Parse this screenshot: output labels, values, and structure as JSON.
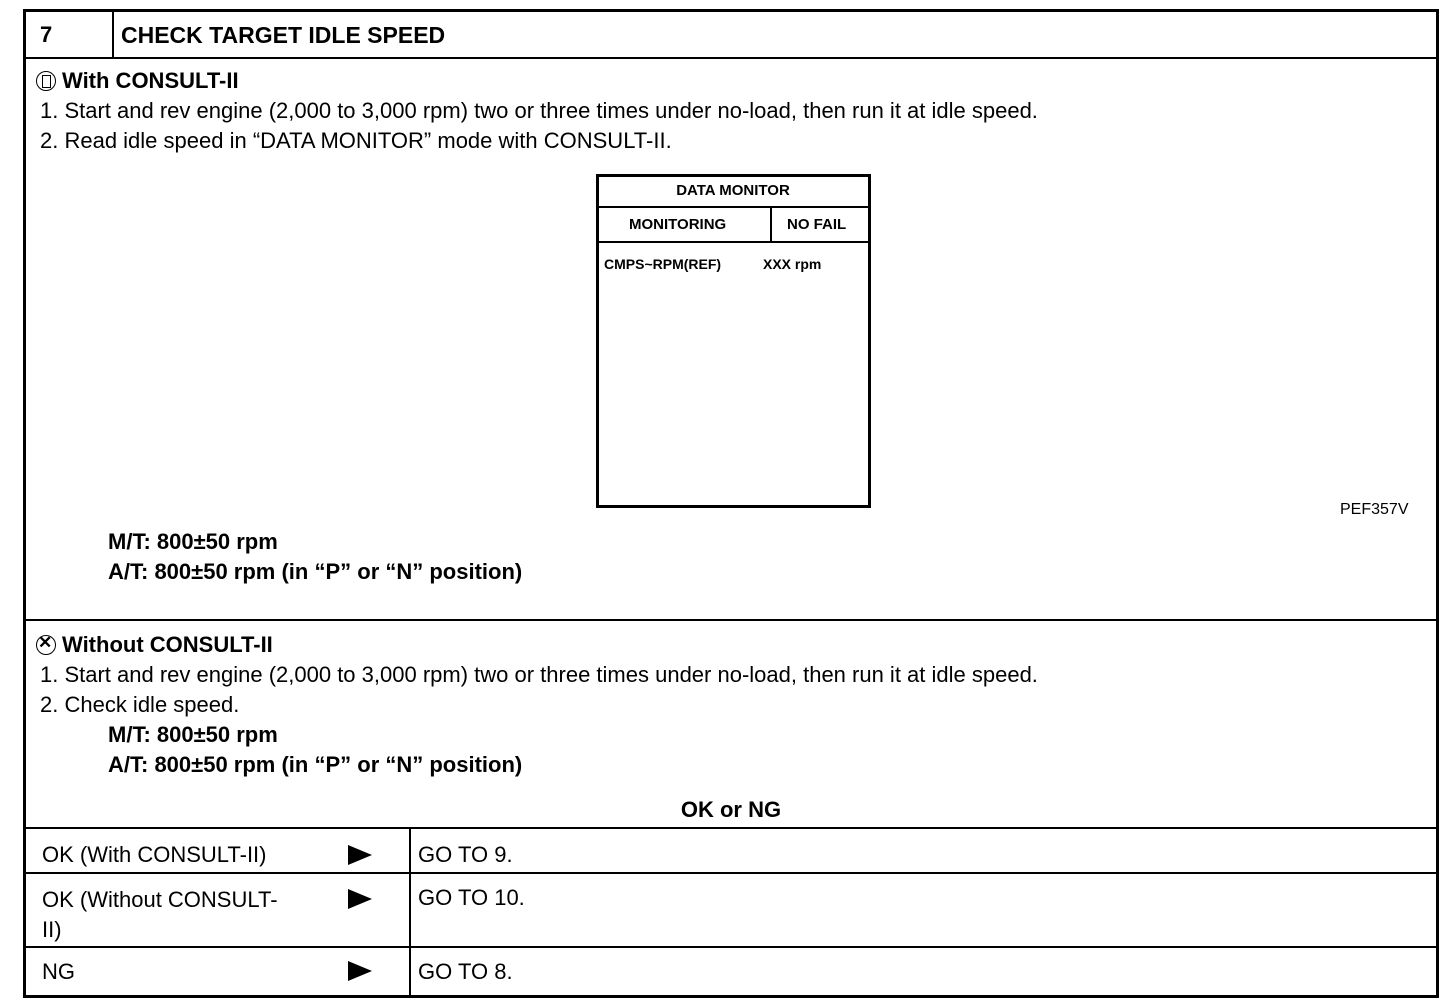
{
  "step": {
    "number": "7",
    "title": "CHECK TARGET IDLE SPEED"
  },
  "with_consult": {
    "icon": "consult-tester-icon",
    "heading": "With CONSULT-II",
    "steps": [
      "1.  Start and rev engine (2,000 to 3,000 rpm) two or three times under no-load, then run it at idle speed.",
      "2.  Read idle speed in “DATA MONITOR” mode with CONSULT-II."
    ],
    "monitor": {
      "title": "DATA MONITOR",
      "col1": "MONITORING",
      "col2": "NO FAIL",
      "item": "CMPS~RPM(REF)",
      "value": "XXX rpm"
    },
    "figure_id": "PEF357V",
    "spec_mt": "M/T: 800±50 rpm",
    "spec_at": "A/T: 800±50 rpm (in “P” or “N” position)"
  },
  "without_consult": {
    "icon": "no-tester-icon",
    "heading": "Without CONSULT-II",
    "steps": [
      "1.  Start and rev engine (2,000 to 3,000 rpm) two or three times under no-load, then run it at idle speed.",
      "2.  Check idle speed."
    ],
    "spec_mt": "M/T: 800±50 rpm",
    "spec_at": "A/T: 800±50 rpm (in “P” or “N” position)"
  },
  "result_heading": "OK or NG",
  "results": [
    {
      "condition": "OK (With CONSULT-II)",
      "action": "GO TO 9."
    },
    {
      "condition_l1": "OK (Without CONSULT-",
      "condition_l2": "II)",
      "action": "GO TO 10."
    },
    {
      "condition": "NG",
      "action": "GO TO 8."
    }
  ]
}
